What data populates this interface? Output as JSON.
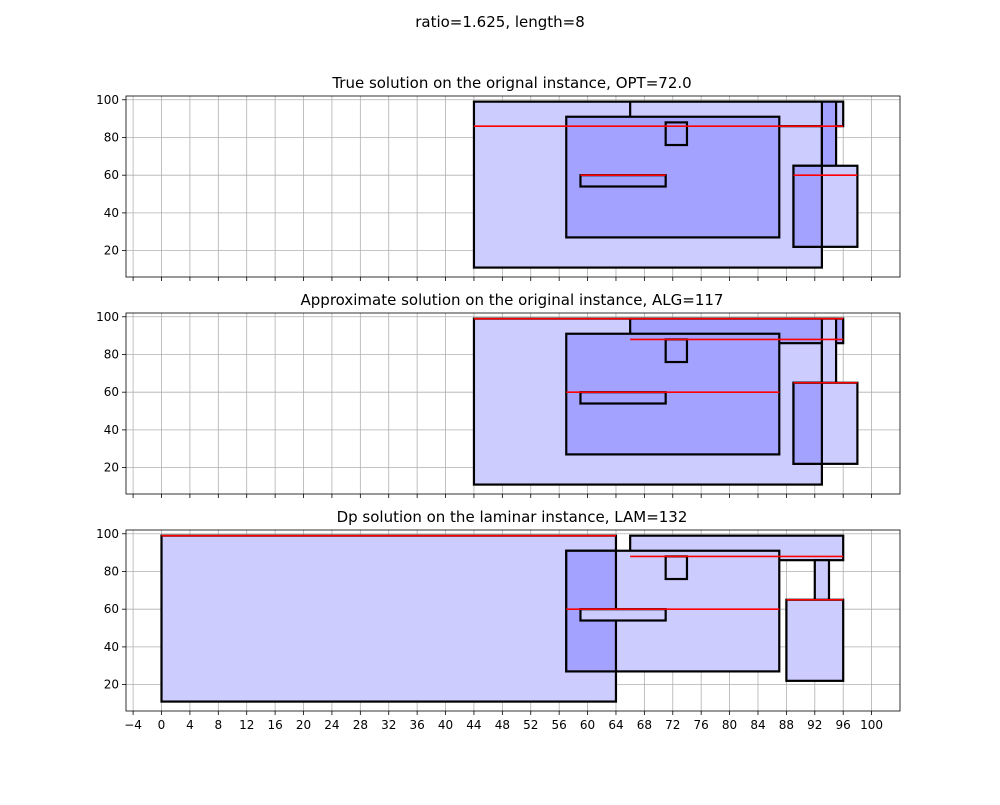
{
  "figure": {
    "suptitle": "ratio=1.625, length=8"
  },
  "style": {
    "light_fill": "#ccccff",
    "dark_fill": "#a3a3ff",
    "edge": "#000000",
    "line": "#ff0000",
    "grid": "#b0b0b0"
  },
  "chart_data": [
    {
      "type": "rectangles",
      "title": "True solution on the orignal instance, OPT=72.0",
      "xlim": [
        -5,
        104
      ],
      "ylim": [
        6,
        102
      ],
      "x_ticks": [],
      "y_ticks": [
        20,
        40,
        60,
        80,
        100
      ],
      "grid": true,
      "rects": [
        {
          "x0": 44,
          "x1": 93,
          "y0": 11,
          "y1": 99,
          "shade": "light"
        },
        {
          "x0": 66,
          "x1": 96,
          "y0": 86,
          "y1": 99,
          "shade": "light"
        },
        {
          "x0": 57,
          "x1": 87,
          "y0": 27,
          "y1": 91,
          "shade": "dark"
        },
        {
          "x0": 71,
          "x1": 74,
          "y0": 76,
          "y1": 88,
          "shade": "dark"
        },
        {
          "x0": 59,
          "x1": 71,
          "y0": 54,
          "y1": 60,
          "shade": "dark"
        },
        {
          "x0": 93,
          "x1": 95,
          "y0": 46,
          "y1": 99,
          "shade": "dark"
        },
        {
          "x0": 89,
          "x1": 98,
          "y0": 22,
          "y1": 65,
          "shade": "light"
        },
        {
          "x0": 89,
          "x1": 93,
          "y0": 22,
          "y1": 65,
          "shade": "dark"
        }
      ],
      "red_lines": [
        {
          "x0": 44,
          "x1": 96,
          "y": 86
        },
        {
          "x0": 59,
          "x1": 71,
          "y": 60
        },
        {
          "x0": 89,
          "x1": 98,
          "y": 60
        }
      ]
    },
    {
      "type": "rectangles",
      "title": "Approximate solution on the original instance, ALG=117",
      "xlim": [
        -5,
        104
      ],
      "ylim": [
        6,
        102
      ],
      "x_ticks": [],
      "y_ticks": [
        20,
        40,
        60,
        80,
        100
      ],
      "grid": true,
      "rects": [
        {
          "x0": 44,
          "x1": 93,
          "y0": 11,
          "y1": 99,
          "shade": "light"
        },
        {
          "x0": 66,
          "x1": 96,
          "y0": 86,
          "y1": 99,
          "shade": "dark"
        },
        {
          "x0": 57,
          "x1": 87,
          "y0": 27,
          "y1": 91,
          "shade": "dark"
        },
        {
          "x0": 71,
          "x1": 74,
          "y0": 76,
          "y1": 88,
          "shade": "dark"
        },
        {
          "x0": 59,
          "x1": 71,
          "y0": 54,
          "y1": 60,
          "shade": "dark"
        },
        {
          "x0": 93,
          "x1": 95,
          "y0": 46,
          "y1": 99,
          "shade": "light"
        },
        {
          "x0": 89,
          "x1": 98,
          "y0": 22,
          "y1": 65,
          "shade": "light"
        },
        {
          "x0": 89,
          "x1": 93,
          "y0": 22,
          "y1": 65,
          "shade": "dark"
        }
      ],
      "red_lines": [
        {
          "x0": 44,
          "x1": 96,
          "y": 99
        },
        {
          "x0": 66,
          "x1": 96,
          "y": 88
        },
        {
          "x0": 57,
          "x1": 87,
          "y": 60
        },
        {
          "x0": 89,
          "x1": 98,
          "y": 65
        }
      ]
    },
    {
      "type": "rectangles",
      "title": "Dp solution on the laminar instance, LAM=132",
      "xlim": [
        -5,
        104
      ],
      "ylim": [
        6,
        102
      ],
      "x_ticks": [
        -4,
        0,
        4,
        8,
        12,
        16,
        20,
        24,
        28,
        32,
        36,
        40,
        44,
        48,
        52,
        56,
        60,
        64,
        68,
        72,
        76,
        80,
        84,
        88,
        92,
        96,
        100
      ],
      "y_ticks": [
        20,
        40,
        60,
        80,
        100
      ],
      "grid": true,
      "rects": [
        {
          "x0": 0,
          "x1": 64,
          "y0": 11,
          "y1": 99,
          "shade": "light"
        },
        {
          "x0": 66,
          "x1": 96,
          "y0": 86,
          "y1": 99,
          "shade": "light"
        },
        {
          "x0": 57,
          "x1": 87,
          "y0": 27,
          "y1": 91,
          "shade": "light"
        },
        {
          "x0": 57,
          "x1": 64,
          "y0": 27,
          "y1": 91,
          "shade": "dark"
        },
        {
          "x0": 71,
          "x1": 74,
          "y0": 76,
          "y1": 88,
          "shade": "light"
        },
        {
          "x0": 59,
          "x1": 71,
          "y0": 54,
          "y1": 60,
          "shade": "light"
        },
        {
          "x0": 92,
          "x1": 94,
          "y0": 46,
          "y1": 86,
          "shade": "light"
        },
        {
          "x0": 88,
          "x1": 96,
          "y0": 22,
          "y1": 65,
          "shade": "light"
        }
      ],
      "red_lines": [
        {
          "x0": 0,
          "x1": 64,
          "y": 99
        },
        {
          "x0": 66,
          "x1": 96,
          "y": 88
        },
        {
          "x0": 57,
          "x1": 87,
          "y": 60
        },
        {
          "x0": 88,
          "x1": 96,
          "y": 65
        }
      ]
    }
  ]
}
